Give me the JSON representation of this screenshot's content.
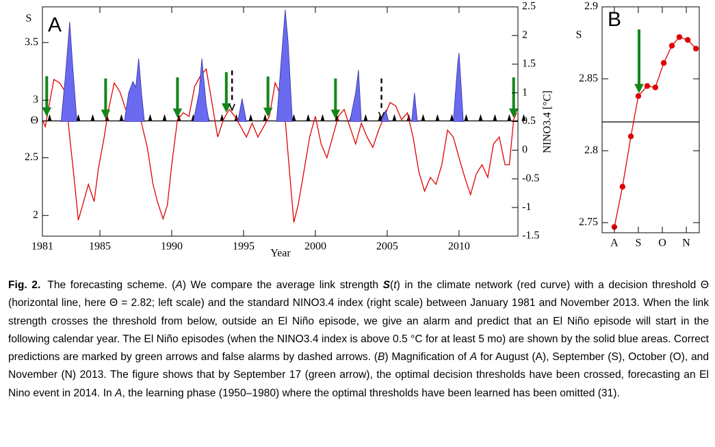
{
  "chart_data": [
    {
      "type": "line",
      "panel_label": "A",
      "ylabel": "S",
      "xlabel": "Year",
      "y2label": "NINO3.4 [°C]",
      "xlim": [
        1981,
        2014.1
      ],
      "ylim": [
        1.82,
        3.81
      ],
      "y2lim": [
        -1.5,
        2.5
      ],
      "xticks": [
        1981,
        1985,
        1990,
        1995,
        2000,
        2005,
        2010
      ],
      "yticks": [
        2,
        2.5,
        3,
        3.5,
        {
          "value": 2.82,
          "label": "Θ"
        }
      ],
      "y2ticks": [
        -1.5,
        -1,
        -0.5,
        0,
        0.5,
        1,
        1.5,
        2,
        2.5
      ],
      "threshold": 2.82,
      "series": [
        {
          "color": "#e00000",
          "x": [
            1981.0,
            1981.2,
            1981.5,
            1981.8,
            1982.2,
            1982.6,
            1982.9,
            1983.2,
            1983.5,
            1983.8,
            1984.2,
            1984.6,
            1984.9,
            1985.3,
            1985.6,
            1986.0,
            1986.4,
            1986.8,
            1987.2,
            1987.6,
            1987.9,
            1988.3,
            1988.7,
            1989.0,
            1989.4,
            1989.7,
            1990.0,
            1990.4,
            1990.8,
            1991.2,
            1991.6,
            1992.0,
            1992.4,
            1992.8,
            1993.2,
            1993.6,
            1994.0,
            1994.4,
            1994.8,
            1995.2,
            1995.6,
            1996.0,
            1996.4,
            1996.8,
            1997.2,
            1997.6,
            1997.9,
            1998.2,
            1998.5,
            1998.8,
            1999.2,
            1999.6,
            2000.0,
            2000.4,
            2000.8,
            2001.2,
            2001.6,
            2002.0,
            2002.4,
            2002.8,
            2003.2,
            2003.6,
            2004.0,
            2004.4,
            2004.8,
            2005.2,
            2005.6,
            2006.0,
            2006.4,
            2006.8,
            2007.2,
            2007.6,
            2008.0,
            2008.4,
            2008.8,
            2009.2,
            2009.6,
            2010.0,
            2010.4,
            2010.8,
            2011.2,
            2011.6,
            2012.0,
            2012.4,
            2012.8,
            2013.2,
            2013.5,
            2013.8,
            2014.0
          ],
          "values": [
            2.83,
            2.77,
            2.98,
            3.18,
            3.15,
            3.07,
            2.68,
            2.33,
            1.96,
            2.09,
            2.27,
            2.12,
            2.41,
            2.68,
            2.92,
            3.15,
            3.07,
            2.92,
            3.01,
            2.98,
            2.8,
            2.59,
            2.27,
            2.12,
            1.97,
            2.09,
            2.44,
            2.83,
            2.89,
            2.86,
            3.12,
            3.21,
            3.27,
            2.98,
            2.68,
            2.83,
            2.92,
            2.86,
            2.77,
            2.68,
            2.8,
            2.68,
            2.77,
            2.86,
            3.15,
            3.04,
            2.83,
            2.38,
            1.94,
            2.09,
            2.38,
            2.68,
            2.86,
            2.62,
            2.5,
            2.68,
            2.86,
            2.92,
            2.77,
            2.62,
            2.8,
            2.68,
            2.59,
            2.74,
            2.86,
            2.98,
            2.95,
            2.83,
            2.89,
            2.68,
            2.38,
            2.21,
            2.33,
            2.27,
            2.44,
            2.74,
            2.68,
            2.5,
            2.33,
            2.18,
            2.36,
            2.44,
            2.33,
            2.62,
            2.68,
            2.44,
            2.44,
            2.83,
            2.89
          ]
        },
        {
          "color": "#6a6af0",
          "axis": "y2",
          "fill": true,
          "x": [
            1982.3,
            1982.6,
            1982.9,
            1983.1,
            1983.4,
            null,
            1986.7,
            1987.0,
            1987.3,
            1987.5,
            1987.7,
            1987.9,
            1988.1,
            null,
            1991.5,
            1991.9,
            1992.1,
            1992.4,
            1992.6,
            null,
            1994.6,
            1994.9,
            1995.2,
            null,
            1997.3,
            1997.6,
            1997.9,
            1998.1,
            1998.4,
            null,
            2002.4,
            2002.8,
            2003.0,
            2003.2,
            null,
            2004.6,
            2004.9,
            2005.1,
            null,
            2006.7,
            2006.9,
            2007.1,
            null,
            2009.6,
            2009.9,
            2010.0,
            2010.3
          ],
          "values": [
            0.5,
            1.3,
            2.24,
            1.5,
            0.5,
            null,
            0.5,
            1.0,
            1.2,
            1.1,
            1.6,
            1.0,
            0.5,
            null,
            0.5,
            1.0,
            1.6,
            0.8,
            0.5,
            null,
            0.5,
            0.9,
            0.5,
            null,
            0.5,
            1.5,
            2.45,
            1.9,
            0.5,
            null,
            0.5,
            1.0,
            1.4,
            0.5,
            null,
            0.5,
            0.7,
            0.5,
            null,
            0.5,
            1.0,
            0.5,
            null,
            0.5,
            1.5,
            1.7,
            0.5
          ]
        }
      ],
      "arrows": [
        {
          "color": "#13861a",
          "x": [
            1981.3,
            1985.4,
            1990.4,
            1993.8,
            1996.7,
            2001.4,
            2013.8
          ]
        },
        {
          "color": "#000000",
          "dashed": true,
          "x": [
            1994.2,
            2004.6
          ]
        }
      ]
    },
    {
      "type": "line",
      "panel_label": "B",
      "ylabel": "S",
      "xlim": [
        -0.51,
        3.54
      ],
      "ylim": [
        2.743,
        2.9
      ],
      "xticks": [
        {
          "value": 0,
          "label": "A"
        },
        {
          "value": 1,
          "label": "S"
        },
        {
          "value": 2,
          "label": "O"
        },
        {
          "value": 3,
          "label": "N"
        }
      ],
      "yticks": [
        2.75,
        2.8,
        2.85,
        2.9
      ],
      "threshold": 2.82,
      "series": [
        {
          "color": "#e00000",
          "markers": true,
          "x": [
            0,
            0.34,
            0.69,
            1.0,
            1.37,
            1.71,
            2.06,
            2.4,
            2.71,
            3.06,
            3.4
          ],
          "values": [
            2.747,
            2.775,
            2.81,
            2.838,
            2.845,
            2.844,
            2.861,
            2.873,
            2.879,
            2.877,
            2.871
          ]
        }
      ],
      "arrows": [
        {
          "color": "#13861a",
          "x": [
            1.03
          ]
        }
      ]
    }
  ],
  "caption": [
    {
      "text": "Fig. 2.",
      "style": "b"
    },
    {
      "text": "The forecasting scheme. ("
    },
    {
      "text": "A",
      "style": "i"
    },
    {
      "text": ") We compare the average link strength "
    },
    {
      "text": "S",
      "style": "bi"
    },
    {
      "text": "("
    },
    {
      "text": "t",
      "style": "i"
    },
    {
      "text": ") in the climate network (red curve) with a decision threshold Θ (horizontal line, here Θ = 2.82; left scale) and the standard NINO3.4 index (right scale) between January 1981 and November 2013. When the link strength crosses the threshold from below, outside an El Niño episode, we give an alarm and predict that an El Niño episode will start in the following calendar year. The El Niño episodes (when the NINO3.4 index is above 0.5 °C for at least 5 mo) are shown by the solid blue areas. Correct predictions are marked by green arrows and false alarms by dashed arrows. ("
    },
    {
      "text": "B",
      "style": "i"
    },
    {
      "text": ") Magnification of "
    },
    {
      "text": "A",
      "style": "i"
    },
    {
      "text": " for August (A), September (S), October (O), and November (N) 2013. The figure shows that by September 17 (green arrow), the optimal decision thresholds have been crossed, forecasting an El Nino event in 2014. In "
    },
    {
      "text": "A",
      "style": "i"
    },
    {
      "text": ", the learning phase (1950–1980) where the optimal thresholds have been learned has been omitted (31)."
    }
  ]
}
